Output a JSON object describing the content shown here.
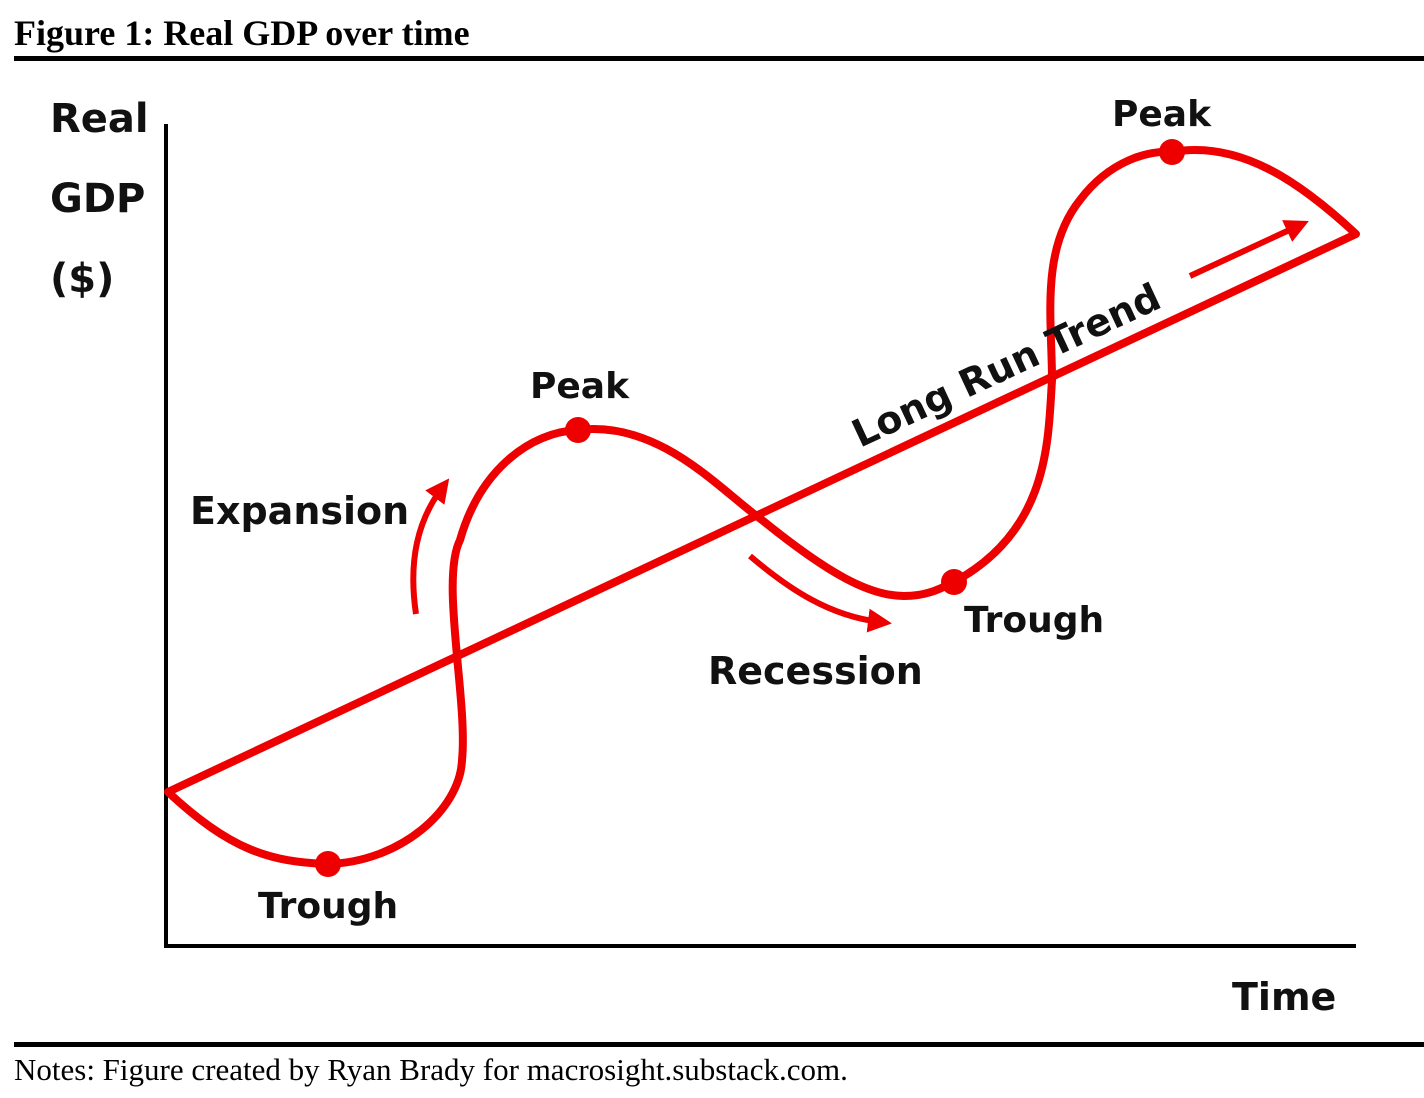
{
  "figure": {
    "title": "Figure 1: Real GDP over time",
    "notes": "Notes: Figure created by Ryan Brady for macrosight.substack.com."
  },
  "axes": {
    "y_label_lines": [
      "Real",
      "GDP",
      "($)"
    ],
    "x_label": "Time"
  },
  "labels": {
    "peak_1": "Peak",
    "peak_2": "Peak",
    "trough_1": "Trough",
    "trough_2": "Trough",
    "expansion": "Expansion",
    "recession": "Recession",
    "trend": "Long Run Trend"
  },
  "colors": {
    "curve": "#ee0000",
    "axes": "#000000",
    "text": "#111111"
  }
}
